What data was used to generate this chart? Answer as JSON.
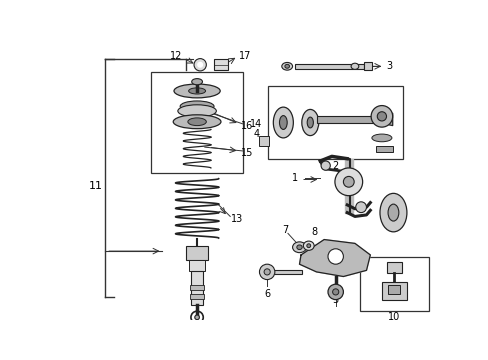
{
  "bg_color": "#ffffff",
  "fig_width": 4.89,
  "fig_height": 3.6,
  "dpi": 100,
  "lc": "#333333",
  "pc": "#444444",
  "fc": "#cccccc",
  "dark": "#222222"
}
